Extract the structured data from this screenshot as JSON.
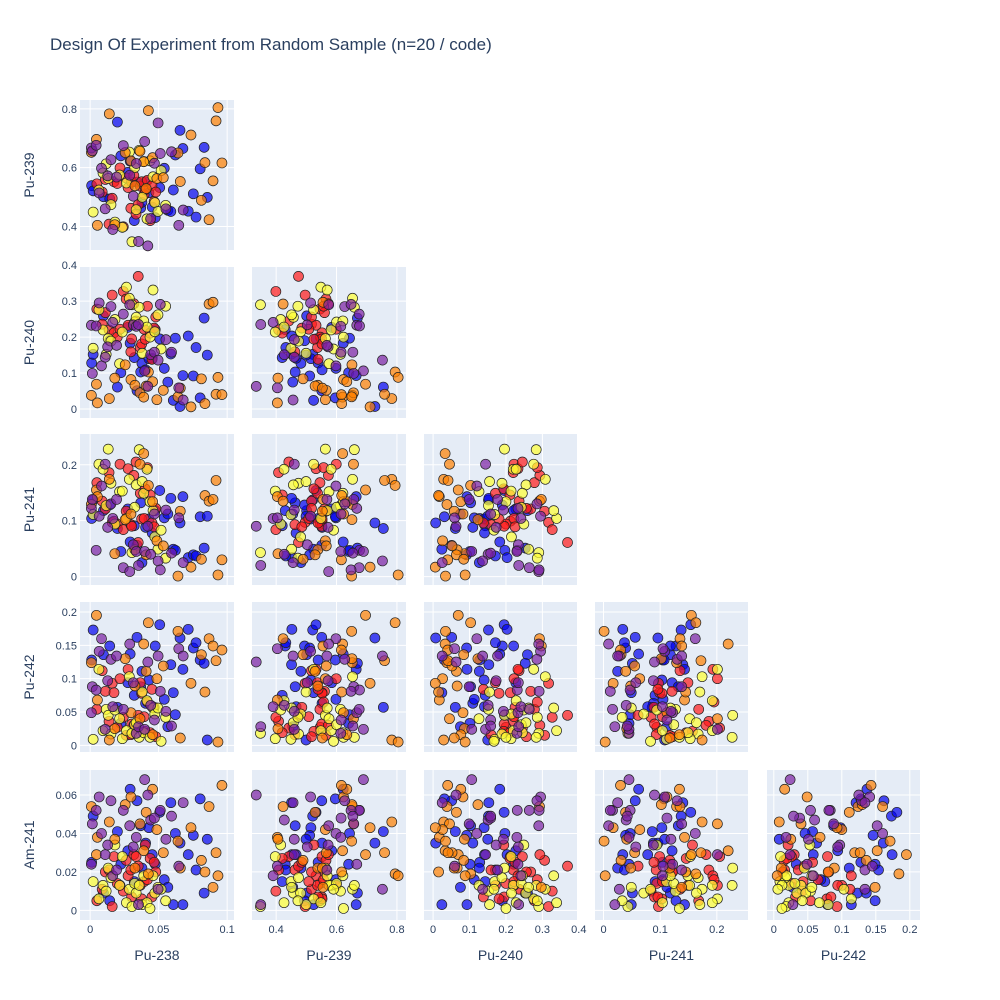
{
  "chart_data": {
    "type": "scatter",
    "title": "Design Of Experiment from Random Sample (n=20 / code)",
    "variables": [
      "Pu-238",
      "Pu-239",
      "Pu-240",
      "Pu-241",
      "Pu-242",
      "Am-241"
    ],
    "groups": [
      {
        "color": "#0000ee",
        "values": [
          [
            0.0011,
            0.539,
            0.128,
            0.104,
            0.128,
            0.025
          ],
          [
            0.0022,
            0.521,
            0.152,
            0.137,
            0.173,
            0.049
          ],
          [
            0.0097,
            0.501,
            0.259,
            0.118,
            0.136,
            0.009
          ],
          [
            0.0143,
            0.494,
            0.19,
            0.128,
            0.149,
            0.005
          ],
          [
            0.0199,
            0.755,
            0.061,
            0.086,
            0.057,
            0.041
          ],
          [
            0.0224,
            0.64,
            0.101,
            0.045,
            0.033,
            0.024
          ],
          [
            0.0275,
            0.584,
            0.227,
            0.121,
            0.094,
            0.031
          ],
          [
            0.0292,
            0.622,
            0.183,
            0.062,
            0.137,
            0.063
          ],
          [
            0.0322,
            0.42,
            0.143,
            0.091,
            0.075,
            0.015
          ],
          [
            0.0342,
            0.551,
            0.051,
            0.056,
            0.162,
            0.057
          ],
          [
            0.0369,
            0.463,
            0.103,
            0.132,
            0.088,
            0.044
          ],
          [
            0.0378,
            0.482,
            0.127,
            0.025,
            0.111,
            0.022
          ],
          [
            0.0405,
            0.552,
            0.109,
            0.088,
            0.063,
            0.035
          ],
          [
            0.0429,
            0.515,
            0.14,
            0.103,
            0.098,
            0.043
          ],
          [
            0.0453,
            0.466,
            0.141,
            0.078,
            0.058,
            0.029
          ],
          [
            0.0475,
            0.43,
            0.221,
            0.118,
            0.149,
            0.024
          ],
          [
            0.0508,
            0.532,
            0.195,
            0.154,
            0.181,
            0.051
          ],
          [
            0.0541,
            0.598,
            0.113,
            0.105,
            0.069,
            0.016
          ],
          [
            0.0567,
            0.455,
            0.075,
            0.112,
            0.028,
            0.012
          ],
          [
            0.0589,
            0.451,
            0.153,
            0.14,
            0.121,
            0.056
          ],
          [
            0.0607,
            0.524,
            0.024,
            0.049,
            0.079,
            0.003
          ],
          [
            0.0622,
            0.643,
            0.197,
            0.047,
            0.046,
            0.04
          ],
          [
            0.0656,
            0.727,
            0.007,
            0.096,
            0.161,
            0.035
          ],
          [
            0.0677,
            0.665,
            0.093,
            0.143,
            0.114,
            0.003
          ],
          [
            0.0716,
            0.452,
            0.203,
            0.034,
            0.174,
            0.029
          ],
          [
            0.0753,
            0.511,
            0.092,
            0.039,
            0.146,
            0.039
          ],
          [
            0.0773,
            0.432,
            0.171,
            0.037,
            0.154,
            0.021
          ],
          [
            0.0803,
            0.596,
            0.031,
            0.107,
            0.128,
            0.058
          ],
          [
            0.0832,
            0.669,
            0.253,
            0.051,
            0.123,
            0.009
          ],
          [
            0.0855,
            0.499,
            0.15,
            0.108,
            0.008,
            0.037
          ]
        ]
      },
      {
        "color": "#ff1a1a",
        "values": [
          [
            0.0049,
            0.545,
            0.278,
            0.168,
            0.054,
            0.005
          ],
          [
            0.0088,
            0.517,
            0.236,
            0.135,
            0.112,
            0.011
          ],
          [
            0.0111,
            0.56,
            0.268,
            0.121,
            0.081,
            0.02
          ],
          [
            0.0138,
            0.408,
            0.22,
            0.186,
            0.036,
            0.021
          ],
          [
            0.0161,
            0.496,
            0.317,
            0.097,
            0.093,
            0.002
          ],
          [
            0.0174,
            0.552,
            0.212,
            0.099,
            0.079,
            0.028
          ],
          [
            0.0198,
            0.546,
            0.2,
            0.094,
            0.027,
            0.014
          ],
          [
            0.0218,
            0.599,
            0.222,
            0.201,
            0.1,
            0.013
          ],
          [
            0.0242,
            0.399,
            0.327,
            0.084,
            0.042,
            0.01
          ],
          [
            0.0263,
            0.565,
            0.306,
            0.117,
            0.015,
            0.026
          ],
          [
            0.0277,
            0.532,
            0.233,
            0.193,
            0.114,
            0.018
          ],
          [
            0.0297,
            0.462,
            0.159,
            0.093,
            0.016,
            0.021
          ],
          [
            0.0303,
            0.551,
            0.195,
            0.09,
            0.032,
            0.007
          ],
          [
            0.0319,
            0.573,
            0.293,
            0.181,
            0.03,
            0.029
          ],
          [
            0.0335,
            0.442,
            0.245,
            0.205,
            0.026,
            0.028
          ],
          [
            0.0351,
            0.474,
            0.369,
            0.061,
            0.045,
            0.023
          ],
          [
            0.0366,
            0.537,
            0.171,
            0.149,
            0.094,
            0.013
          ],
          [
            0.0376,
            0.552,
            0.181,
            0.103,
            0.078,
            0.006
          ],
          [
            0.0394,
            0.508,
            0.222,
            0.104,
            0.043,
            0.015
          ],
          [
            0.0402,
            0.525,
            0.194,
            0.157,
            0.021,
            0.034
          ],
          [
            0.0418,
            0.557,
            0.286,
            0.195,
            0.065,
            0.016
          ],
          [
            0.0438,
            0.42,
            0.211,
            0.146,
            0.019,
            0.027
          ],
          [
            0.0451,
            0.539,
            0.138,
            0.096,
            0.084,
            0.007
          ],
          [
            0.0467,
            0.485,
            0.225,
            0.089,
            0.057,
            0.025
          ],
          [
            0.0479,
            0.517,
            0.256,
            0.122,
            0.013,
            0.02
          ]
        ]
      },
      {
        "color": "#ffff33",
        "values": [
          [
            0.0022,
            0.449,
            0.169,
            0.111,
            0.009,
            0.015
          ],
          [
            0.0064,
            0.524,
            0.276,
            0.201,
            0.114,
            0.006
          ],
          [
            0.0094,
            0.582,
            0.22,
            0.192,
            0.022,
            0.013
          ],
          [
            0.0117,
            0.613,
            0.152,
            0.127,
            0.054,
            0.01
          ],
          [
            0.0132,
            0.563,
            0.196,
            0.228,
            0.045,
            0.022
          ],
          [
            0.0152,
            0.474,
            0.189,
            0.167,
            0.017,
            0.017
          ],
          [
            0.0181,
            0.415,
            0.249,
            0.094,
            0.053,
            0.034
          ],
          [
            0.0215,
            0.575,
            0.126,
            0.152,
            0.04,
            0.013
          ],
          [
            0.0235,
            0.397,
            0.214,
            0.153,
            0.01,
            0.028
          ],
          [
            0.0265,
            0.548,
            0.339,
            0.104,
            0.022,
            0.004
          ],
          [
            0.0286,
            0.653,
            0.308,
            0.174,
            0.103,
            0.011
          ],
          [
            0.0305,
            0.348,
            0.29,
            0.043,
            0.018,
            0.002
          ],
          [
            0.0325,
            0.6,
            0.242,
            0.124,
            0.031,
            0.014
          ],
          [
            0.0336,
            0.457,
            0.255,
            0.164,
            0.034,
            0.009
          ],
          [
            0.0358,
            0.659,
            0.283,
            0.227,
            0.012,
            0.013
          ],
          [
            0.038,
            0.499,
            0.155,
            0.17,
            0.08,
            0.003
          ],
          [
            0.0391,
            0.621,
            0.245,
            0.149,
            0.019,
            0.018
          ],
          [
            0.0415,
            0.426,
            0.228,
            0.192,
            0.067,
            0.004
          ],
          [
            0.0437,
            0.623,
            0.2,
            0.134,
            0.012,
            0.001
          ],
          [
            0.0459,
            0.569,
            0.331,
            0.118,
            0.056,
            0.018
          ],
          [
            0.0472,
            0.481,
            0.215,
            0.071,
            0.047,
            0.009
          ],
          [
            0.0495,
            0.451,
            0.262,
            0.049,
            0.056,
            0.012
          ],
          [
            0.0518,
            0.59,
            0.167,
            0.083,
            0.006,
            0.011
          ],
          [
            0.0551,
            0.472,
            0.286,
            0.033,
            0.042,
            0.005
          ]
        ]
      },
      {
        "color": "#ff8000",
        "values": [
          [
            0.0009,
            0.652,
            0.038,
            0.129,
            0.124,
            0.054
          ],
          [
            0.0046,
            0.696,
            0.069,
            0.155,
            0.195,
            0.029
          ],
          [
            0.0053,
            0.404,
            0.017,
            0.143,
            0.068,
            0.038
          ],
          [
            0.014,
            0.783,
            0.029,
            0.174,
            0.008,
            0.046
          ],
          [
            0.018,
            0.406,
            0.086,
            0.041,
            0.025,
            0.037
          ],
          [
            0.0256,
            0.651,
            0.123,
            0.102,
            0.13,
            0.055
          ],
          [
            0.0298,
            0.623,
            0.082,
            0.112,
            0.049,
            0.059
          ],
          [
            0.0327,
            0.538,
            0.066,
            0.048,
            0.089,
            0.022
          ],
          [
            0.0364,
            0.656,
            0.045,
            0.201,
            0.04,
            0.045
          ],
          [
            0.0391,
            0.62,
            0.033,
            0.22,
            0.152,
            0.031
          ],
          [
            0.0409,
            0.529,
            0.064,
            0.039,
            0.111,
            0.051
          ],
          [
            0.0425,
            0.794,
            0.103,
            0.163,
            0.184,
            0.019
          ],
          [
            0.0456,
            0.634,
            0.076,
            0.134,
            0.016,
            0.063
          ],
          [
            0.0487,
            0.563,
            0.026,
            0.064,
            0.1,
            0.042
          ],
          [
            0.0534,
            0.566,
            0.052,
            0.055,
            0.119,
            0.03
          ],
          [
            0.0641,
            0.65,
            0.034,
            0.001,
            0.171,
            0.036
          ],
          [
            0.0658,
            0.553,
            0.058,
            0.117,
            0.011,
            0.022
          ],
          [
            0.0736,
            0.711,
            0.006,
            0.017,
            0.093,
            0.043
          ],
          [
            0.0812,
            0.489,
            0.084,
            0.031,
            0.136,
            0.026
          ],
          [
            0.0838,
            0.617,
            0.015,
            0.145,
            0.08,
            0.02
          ],
          [
            0.0868,
            0.423,
            0.292,
            0.135,
            0.16,
            0.054
          ],
          [
            0.0897,
            0.555,
            0.297,
            0.138,
            0.149,
            0.012
          ],
          [
            0.0919,
            0.759,
            0.041,
            0.172,
            0.127,
            0.03
          ],
          [
            0.0962,
            0.616,
            0.04,
            0.03,
            0.143,
            0.065
          ],
          [
            0.0933,
            0.804,
            0.088,
            0.003,
            0.005,
            0.018
          ]
        ]
      },
      {
        "color": "#7b1fa2",
        "values": [
          [
            0.0009,
            0.667,
            0.233,
            0.122,
            0.049,
            0.024
          ],
          [
            0.0016,
            0.657,
            0.099,
            0.138,
            0.088,
            0.045
          ],
          [
            0.0044,
            0.676,
            0.231,
            0.047,
            0.083,
            0.052
          ],
          [
            0.0066,
            0.514,
            0.295,
            0.108,
            0.141,
            0.059
          ],
          [
            0.0083,
            0.598,
            0.12,
            0.162,
            0.16,
            0.04
          ],
          [
            0.011,
            0.46,
            0.144,
            0.201,
            0.024,
            0.029
          ],
          [
            0.0128,
            0.572,
            0.173,
            0.088,
            0.097,
            0.034
          ],
          [
            0.0152,
            0.627,
            0.285,
            0.13,
            0.129,
            0.057
          ],
          [
            0.0165,
            0.39,
            0.241,
            0.104,
            0.058,
            0.018
          ],
          [
            0.0193,
            0.568,
            0.177,
            0.138,
            0.134,
            0.021
          ],
          [
            0.0242,
            0.675,
            0.264,
            0.016,
            0.054,
            0.052
          ],
          [
            0.0289,
            0.574,
            0.29,
            0.009,
            0.152,
            0.044
          ],
          [
            0.0315,
            0.503,
            0.234,
            0.057,
            0.094,
            0.033
          ],
          [
            0.0337,
            0.614,
            0.23,
            0.045,
            0.018,
            0.038
          ],
          [
            0.0353,
            0.349,
            0.235,
            0.02,
            0.028,
            0.003
          ],
          [
            0.0398,
            0.689,
            0.106,
            0.045,
            0.024,
            0.068
          ],
          [
            0.0421,
            0.334,
            0.063,
            0.09,
            0.125,
            0.06
          ],
          [
            0.0442,
            0.427,
            0.151,
            0.04,
            0.06,
            0.047
          ],
          [
            0.0469,
            0.615,
            0.158,
            0.112,
            0.038,
            0.048
          ],
          [
            0.0496,
            0.752,
            0.136,
            0.028,
            0.134,
            0.011
          ],
          [
            0.0512,
            0.648,
            0.291,
            0.012,
            0.081,
            0.052
          ],
          [
            0.0553,
            0.46,
            0.193,
            0.119,
            0.051,
            0.037
          ],
          [
            0.0594,
            0.654,
            0.158,
            0.042,
            0.029,
            0.049
          ],
          [
            0.0647,
            0.404,
            0.059,
            0.105,
            0.145,
            0.023
          ],
          [
            0.0679,
            0.456,
            0.025,
            0.025,
            0.134,
            0.056
          ]
        ]
      }
    ]
  }
}
